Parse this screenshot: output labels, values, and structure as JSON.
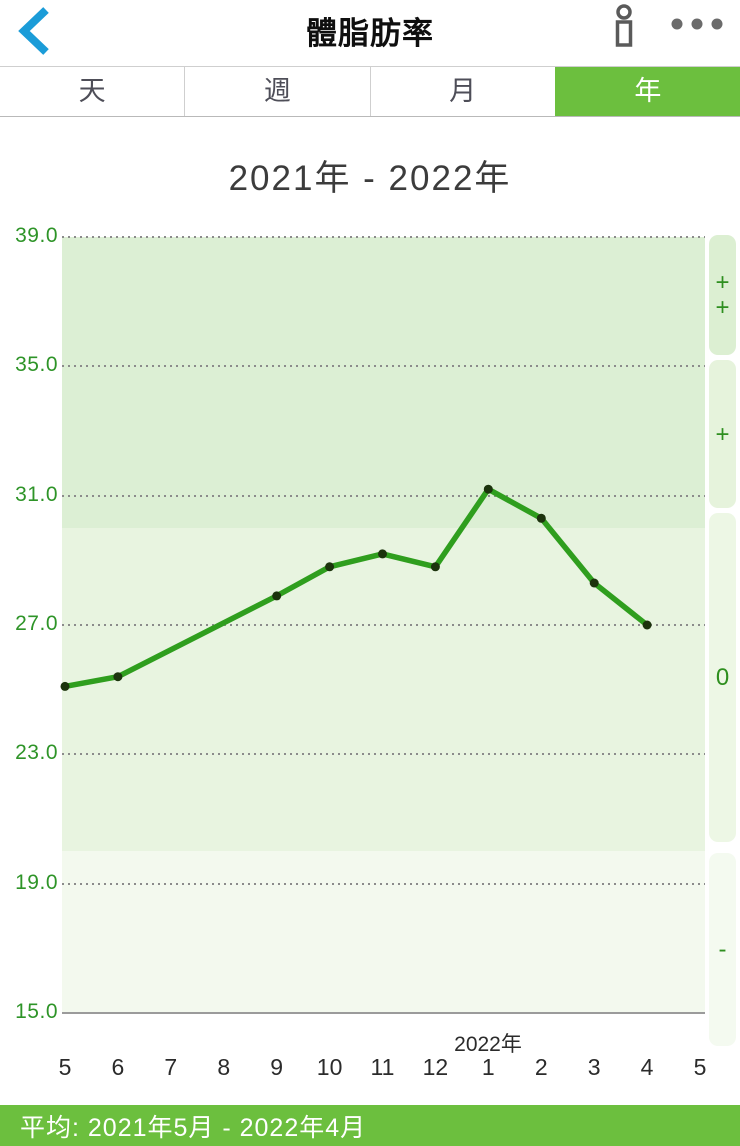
{
  "header": {
    "title": "體脂肪率"
  },
  "tabs": [
    {
      "label": "天",
      "active": false
    },
    {
      "label": "週",
      "active": false
    },
    {
      "label": "月",
      "active": false
    },
    {
      "label": "年",
      "active": true
    }
  ],
  "chart": {
    "title": "2021年 - 2022年",
    "year_label": "2022年",
    "zone_buttons": [
      {
        "name": "zone-plus-plus",
        "label": "+\n+"
      },
      {
        "name": "zone-plus",
        "label": "+"
      },
      {
        "name": "zone-zero",
        "label": "0"
      },
      {
        "name": "zone-minus",
        "label": "-"
      }
    ]
  },
  "chart_data": {
    "type": "line",
    "title": "2021年 - 2022年",
    "x_tick_labels": [
      "5",
      "6",
      "7",
      "8",
      "9",
      "10",
      "11",
      "12",
      "1",
      "2",
      "3",
      "4",
      "5"
    ],
    "year_label_tick_index": 8,
    "values": [
      25.1,
      25.4,
      null,
      null,
      27.9,
      28.8,
      29.2,
      28.8,
      31.2,
      30.3,
      28.3,
      27.0
    ],
    "y_ticks": [
      "39.0",
      "35.0",
      "31.0",
      "27.0",
      "23.0",
      "19.0",
      "15.0"
    ],
    "ylim": [
      15,
      39
    ],
    "grid": "horizontal-dotted",
    "legend_position": "none",
    "line_color": "#2f9e1e",
    "marker_color": "#1c330d",
    "bands": [
      {
        "zone": "high",
        "from": 30,
        "to": 39,
        "color": "#dcefd4"
      },
      {
        "zone": "mid",
        "from": 20,
        "to": 30,
        "color": "#e8f4e0"
      },
      {
        "zone": "low",
        "from": 15,
        "to": 20,
        "color": "#f3f9ee"
      }
    ]
  },
  "footer": {
    "average_label": "平均: 2021年5月 - 2022年4月"
  },
  "colors": {
    "accent_green": "#6cbf3e",
    "back_arrow_blue": "#1b9cd8",
    "axis_label_green": "#2e9428",
    "header_icon_gray": "#5a5a5a"
  }
}
